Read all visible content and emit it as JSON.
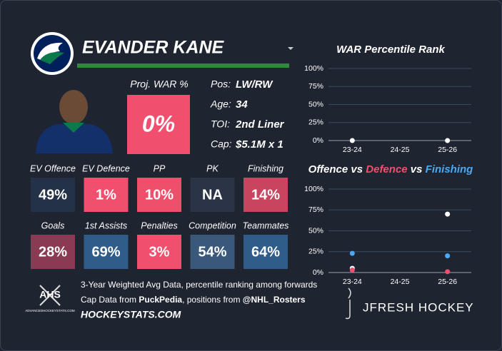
{
  "player": {
    "name": "EVANDER KANE",
    "proj_war_label": "Proj. WAR %",
    "proj_war": "0%",
    "info": [
      {
        "label": "Pos:",
        "value": "LW/RW"
      },
      {
        "label": "Age:",
        "value": "34"
      },
      {
        "label": "TOI:",
        "value": "2nd Liner"
      },
      {
        "label": "Cap:",
        "value": "$5.1M x 1"
      }
    ]
  },
  "stats": [
    {
      "label": "EV Offence",
      "value": "49%",
      "color": "#243247"
    },
    {
      "label": "EV Defence",
      "value": "1%",
      "color": "#f0506e"
    },
    {
      "label": "PP",
      "value": "10%",
      "color": "#ee4f6b"
    },
    {
      "label": "PK",
      "value": "NA",
      "color": "#2a3446"
    },
    {
      "label": "Finishing",
      "value": "14%",
      "color": "#c8445f"
    },
    {
      "label": "Goals",
      "value": "28%",
      "color": "#8a3a52"
    },
    {
      "label": "1st Assists",
      "value": "69%",
      "color": "#2f5c88"
    },
    {
      "label": "Penalties",
      "value": "3%",
      "color": "#f0506e"
    },
    {
      "label": "Competition",
      "value": "54%",
      "color": "#3a587a"
    },
    {
      "label": "Teammates",
      "value": "64%",
      "color": "#2f5c88"
    }
  ],
  "footer": {
    "line1": "3-Year Weighted Avg Data, percentile ranking among forwards",
    "line2": [
      {
        "text": "Cap Data from ",
        "bold": false
      },
      {
        "text": "PuckPedia",
        "bold": true
      },
      {
        "text": ", positions from ",
        "bold": false
      },
      {
        "text": "@NHL_Rosters",
        "bold": true
      }
    ],
    "site": "HOCKEYSTATS.COM",
    "ahs": "AHS",
    "ahs_sub": "ADVANCEDHOCKEYSTATS.COM",
    "brand": "JFRESH HOCKEY"
  },
  "chart_data": [
    {
      "type": "scatter",
      "title": "WAR Percentile Rank",
      "categories": [
        "23-24",
        "24-25",
        "25-26"
      ],
      "series": [
        {
          "name": "WAR",
          "color": "#ffffff",
          "values": [
            0,
            null,
            0
          ]
        }
      ],
      "ylim": [
        0,
        100
      ],
      "yticks": [
        {
          "value": 0,
          "label": "0%"
        },
        {
          "value": 25,
          "label": "25%"
        },
        {
          "value": 50,
          "label": "50%"
        },
        {
          "value": 75,
          "label": "75%"
        },
        {
          "value": 100,
          "label": "100%"
        }
      ],
      "grid": true
    },
    {
      "type": "scatter",
      "title_joiner": "vs",
      "categories": [
        "23-24",
        "24-25",
        "25-26"
      ],
      "series": [
        {
          "name": "Offence",
          "color": "#ffffff",
          "values": [
            5,
            null,
            70
          ]
        },
        {
          "name": "Defence",
          "color": "#f0506e",
          "values": [
            3,
            null,
            1
          ]
        },
        {
          "name": "Finishing",
          "color": "#4ca8f0",
          "values": [
            23,
            null,
            20
          ]
        }
      ],
      "ylim": [
        0,
        100
      ],
      "yticks": [
        {
          "value": 0,
          "label": "0%"
        },
        {
          "value": 25,
          "label": "25%"
        },
        {
          "value": 50,
          "label": "50%"
        },
        {
          "value": 75,
          "label": "75%"
        },
        {
          "value": 100,
          "label": "100%"
        }
      ],
      "grid": true
    }
  ]
}
